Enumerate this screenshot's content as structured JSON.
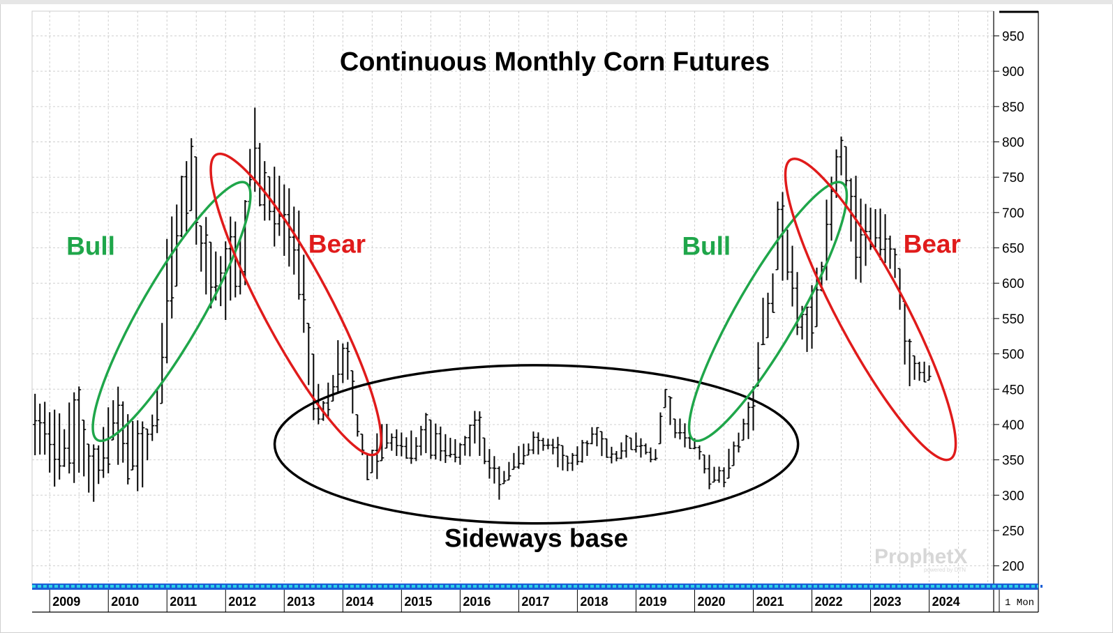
{
  "chart_data": {
    "type": "ohlc",
    "title": "Continuous Monthly Corn Futures",
    "period_label": "1 Mon",
    "watermark": {
      "brand": "ProphetX",
      "sub": "powered by DTN"
    },
    "y_ticks": [
      200,
      250,
      300,
      350,
      400,
      450,
      500,
      550,
      600,
      650,
      700,
      750,
      800,
      850,
      900,
      950
    ],
    "ylim": [
      175,
      985
    ],
    "x_years": [
      "2009",
      "2010",
      "2011",
      "2012",
      "2013",
      "2014",
      "2015",
      "2016",
      "2017",
      "2018",
      "2019",
      "2020",
      "2021",
      "2022",
      "2023",
      "2024"
    ],
    "x_start": 2008.7,
    "x_end": 2025.1,
    "grid": true,
    "colors": {
      "bars": "#000000",
      "bull": "#1fa64a",
      "bear": "#e01b1b",
      "base": "#000000",
      "strip": "#2bd0e6",
      "strip_edge": "#1c5fd6"
    },
    "annotations": [
      {
        "text": "Bull",
        "kind": "bull",
        "x": 2009.7,
        "y": 640
      },
      {
        "text": "Bear",
        "kind": "bear",
        "x": 2013.9,
        "y": 643
      },
      {
        "text": "Bull",
        "kind": "bull",
        "x": 2020.2,
        "y": 640
      },
      {
        "text": "Bear",
        "kind": "bear",
        "x": 2024.05,
        "y": 643
      },
      {
        "text": "Sideways base",
        "kind": "base",
        "x": 2017.3,
        "y": 227
      }
    ],
    "ellipses": [
      {
        "kind": "bull",
        "cx": 2011.08,
        "cy": 560,
        "rx": 4.2,
        "ry": 0.52,
        "angle": -60
      },
      {
        "kind": "bear",
        "cx": 2013.2,
        "cy": 570,
        "rx": 4.8,
        "ry": 0.58,
        "angle": 62
      },
      {
        "kind": "base",
        "cx": 2017.3,
        "cy": 372,
        "rx": 7.4,
        "ry": 1.35,
        "angle": 0
      },
      {
        "kind": "bull",
        "cx": 2021.25,
        "cy": 560,
        "rx": 4.2,
        "ry": 0.52,
        "angle": -60
      },
      {
        "kind": "bear",
        "cx": 2023.0,
        "cy": 563,
        "rx": 4.8,
        "ry": 0.58,
        "angle": 62
      }
    ],
    "anchors": [
      [
        2008.75,
        400,
        30
      ],
      [
        2008.9,
        385,
        45
      ],
      [
        2009.15,
        370,
        40
      ],
      [
        2009.5,
        385,
        45
      ],
      [
        2009.6,
        355,
        45
      ],
      [
        2009.8,
        330,
        40
      ],
      [
        2010.1,
        405,
        40
      ],
      [
        2010.4,
        365,
        35
      ],
      [
        2010.6,
        355,
        35
      ],
      [
        2010.8,
        400,
        25
      ],
      [
        2011.0,
        560,
        60
      ],
      [
        2011.15,
        650,
        50
      ],
      [
        2011.3,
        720,
        55
      ],
      [
        2011.45,
        750,
        55
      ],
      [
        2011.6,
        640,
        45
      ],
      [
        2011.8,
        610,
        45
      ],
      [
        2012.0,
        610,
        45
      ],
      [
        2012.15,
        640,
        45
      ],
      [
        2012.3,
        620,
        45
      ],
      [
        2012.45,
        800,
        45
      ],
      [
        2012.6,
        745,
        30
      ],
      [
        2012.75,
        720,
        40
      ],
      [
        2012.9,
        705,
        40
      ],
      [
        2013.1,
        670,
        40
      ],
      [
        2013.3,
        630,
        45
      ],
      [
        2013.45,
        460,
        40
      ],
      [
        2013.6,
        420,
        22
      ],
      [
        2013.75,
        430,
        25
      ],
      [
        2013.95,
        490,
        25
      ],
      [
        2014.1,
        490,
        25
      ],
      [
        2014.25,
        400,
        20
      ],
      [
        2014.4,
        345,
        20
      ],
      [
        2014.55,
        345,
        25
      ],
      [
        2014.7,
        385,
        20
      ],
      [
        2015.0,
        370,
        20
      ],
      [
        2015.2,
        365,
        20
      ],
      [
        2015.45,
        390,
        28
      ],
      [
        2015.6,
        375,
        20
      ],
      [
        2015.8,
        365,
        15
      ],
      [
        2016.0,
        360,
        15
      ],
      [
        2016.15,
        380,
        22
      ],
      [
        2016.3,
        400,
        25
      ],
      [
        2016.5,
        345,
        20
      ],
      [
        2016.7,
        315,
        15
      ],
      [
        2016.9,
        345,
        12
      ],
      [
        2017.1,
        360,
        12
      ],
      [
        2017.3,
        375,
        12
      ],
      [
        2017.5,
        370,
        12
      ],
      [
        2017.65,
        365,
        15
      ],
      [
        2017.85,
        345,
        12
      ],
      [
        2018.0,
        355,
        12
      ],
      [
        2018.15,
        365,
        12
      ],
      [
        2018.3,
        390,
        15
      ],
      [
        2018.5,
        365,
        20
      ],
      [
        2018.65,
        355,
        12
      ],
      [
        2018.85,
        370,
        12
      ],
      [
        2019.0,
        375,
        12
      ],
      [
        2019.2,
        360,
        12
      ],
      [
        2019.35,
        360,
        12
      ],
      [
        2019.5,
        435,
        20
      ],
      [
        2019.65,
        400,
        20
      ],
      [
        2019.8,
        385,
        15
      ],
      [
        2020.0,
        375,
        12
      ],
      [
        2020.15,
        350,
        20
      ],
      [
        2020.3,
        330,
        15
      ],
      [
        2020.5,
        325,
        15
      ],
      [
        2020.65,
        355,
        15
      ],
      [
        2020.85,
        400,
        15
      ],
      [
        2021.0,
        420,
        25
      ],
      [
        2021.15,
        540,
        25
      ],
      [
        2021.3,
        560,
        25
      ],
      [
        2021.45,
        700,
        60
      ],
      [
        2021.6,
        630,
        40
      ],
      [
        2021.75,
        570,
        40
      ],
      [
        2021.9,
        530,
        35
      ],
      [
        2022.05,
        570,
        30
      ],
      [
        2022.2,
        620,
        30
      ],
      [
        2022.3,
        690,
        50
      ],
      [
        2022.45,
        760,
        45
      ],
      [
        2022.55,
        780,
        40
      ],
      [
        2022.65,
        720,
        40
      ],
      [
        2022.8,
        650,
        60
      ],
      [
        2022.95,
        670,
        30
      ],
      [
        2023.1,
        680,
        25
      ],
      [
        2023.25,
        660,
        25
      ],
      [
        2023.4,
        640,
        25
      ],
      [
        2023.55,
        560,
        40
      ],
      [
        2023.65,
        490,
        25
      ],
      [
        2023.8,
        475,
        15
      ],
      [
        2023.95,
        475,
        10
      ]
    ]
  }
}
